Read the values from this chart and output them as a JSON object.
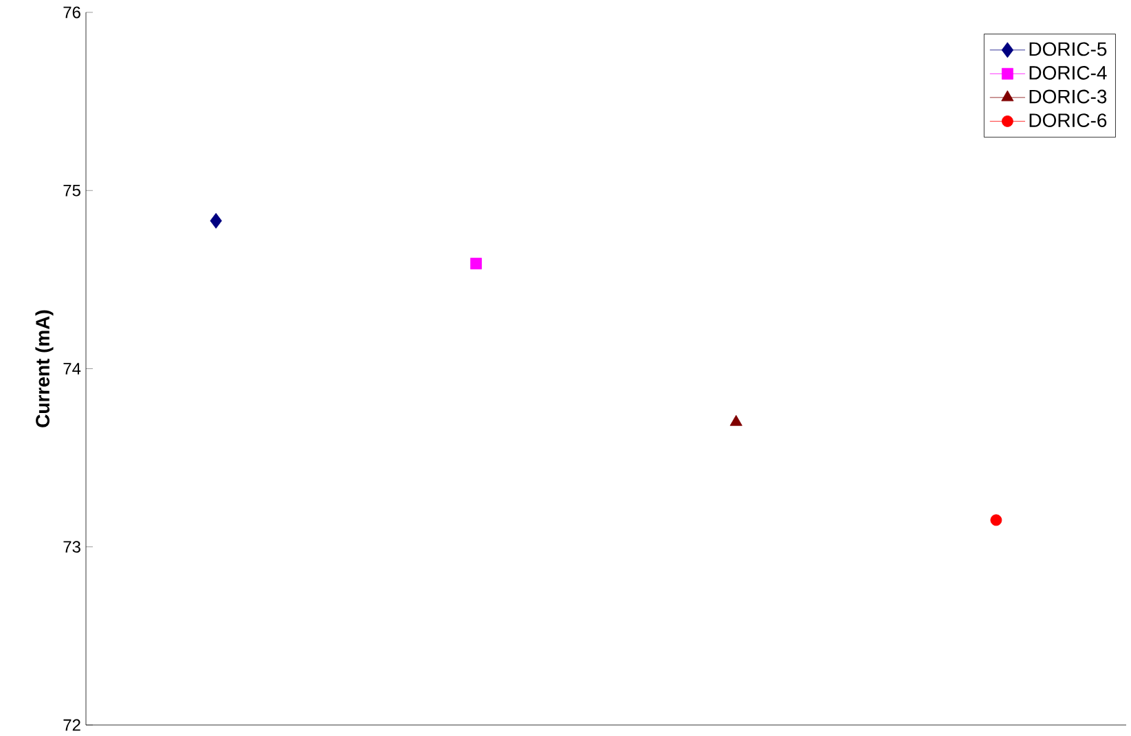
{
  "chart_data": {
    "type": "line",
    "ylabel": "Current (mA)",
    "categories": [
      null,
      null,
      null,
      null
    ],
    "series": [
      {
        "name": "DORIC-5",
        "color": "#000080",
        "marker": "diamond",
        "values": [
          74.83,
          null,
          null,
          null
        ]
      },
      {
        "name": "DORIC-4",
        "color": "#ff00ff",
        "marker": "square",
        "values": [
          null,
          74.59,
          null,
          null
        ]
      },
      {
        "name": "DORIC-3",
        "color": "#800000",
        "marker": "triangle",
        "values": [
          null,
          null,
          73.7,
          null
        ]
      },
      {
        "name": "DORIC-6",
        "color": "#ff0000",
        "marker": "circle",
        "values": [
          null,
          null,
          null,
          73.15
        ]
      }
    ],
    "ylim": [
      72,
      76
    ],
    "yticks": [
      72,
      73,
      74,
      75,
      76
    ],
    "tick_labels": "y",
    "legend": "top right"
  }
}
